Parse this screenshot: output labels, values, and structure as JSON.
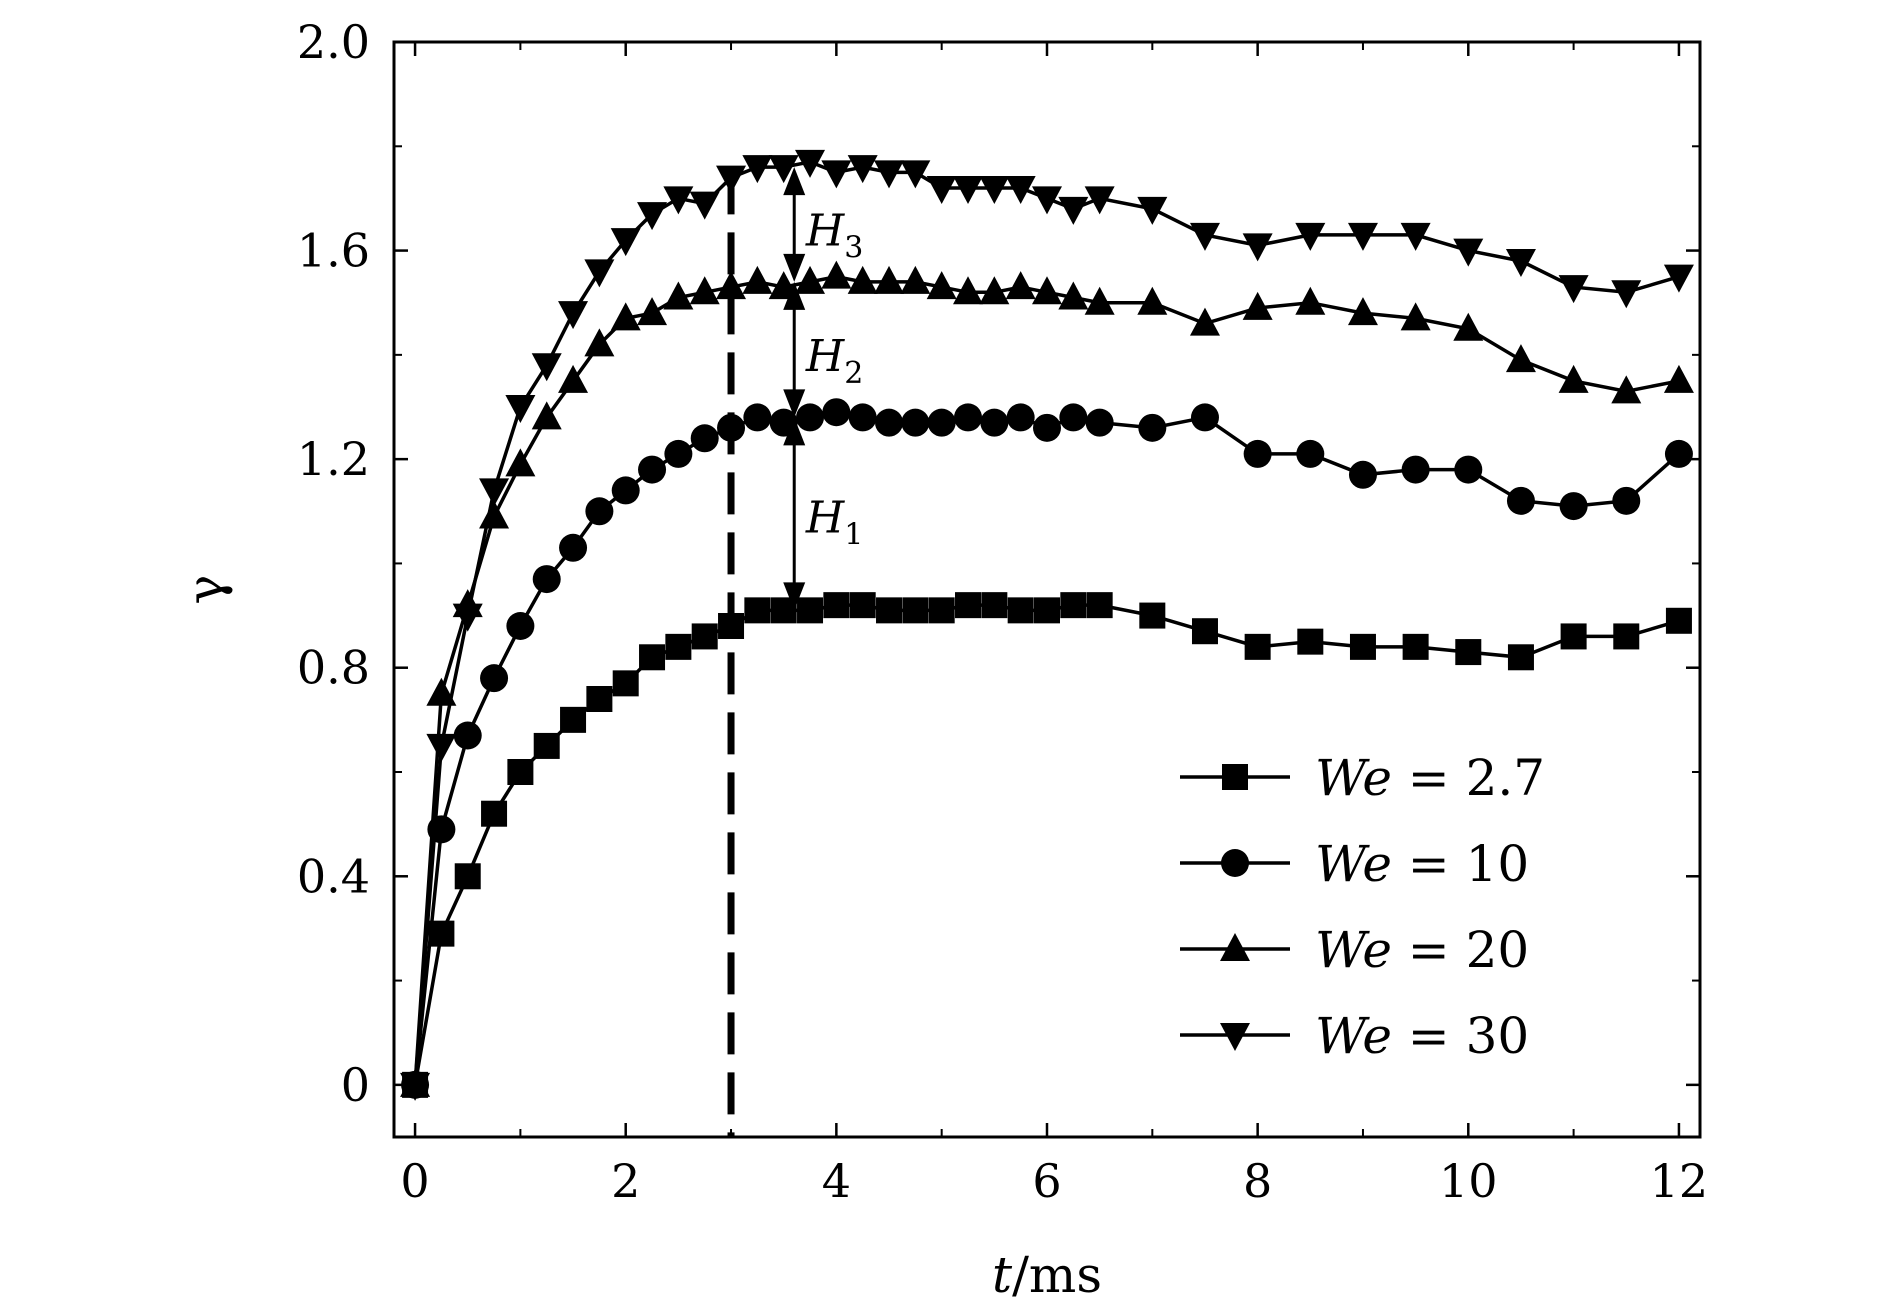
{
  "chart_data": {
    "type": "line",
    "title": "",
    "xlabel_var": "t",
    "xlabel_unit": "/ms",
    "ylabel": "γ",
    "xlim": [
      -0.2,
      12.2
    ],
    "ylim": [
      -0.1,
      2.0
    ],
    "x_ticks": [
      0,
      2,
      4,
      6,
      8,
      10,
      12
    ],
    "y_ticks": [
      0,
      0.4,
      0.8,
      1.2,
      1.6,
      2.0
    ],
    "y_tick_labels": [
      "0",
      "0.4",
      "0.8",
      "1.2",
      "1.6",
      "2.0"
    ],
    "grid": false,
    "legend_position": "bottom-right",
    "series": [
      {
        "name": "We = 2.7",
        "legend_var": "We",
        "legend_value": "= 2.7",
        "marker": "square",
        "x": [
          0,
          0.25,
          0.5,
          0.75,
          1.0,
          1.25,
          1.5,
          1.75,
          2.0,
          2.25,
          2.5,
          2.75,
          3.0,
          3.25,
          3.5,
          3.75,
          4.0,
          4.25,
          4.5,
          4.75,
          5.0,
          5.25,
          5.5,
          5.75,
          6.0,
          6.25,
          6.5,
          7.0,
          7.5,
          8.0,
          8.5,
          9.0,
          9.5,
          10.0,
          10.5,
          11.0,
          11.5,
          12.0
        ],
        "y": [
          0,
          0.29,
          0.4,
          0.52,
          0.6,
          0.65,
          0.7,
          0.74,
          0.77,
          0.82,
          0.84,
          0.86,
          0.88,
          0.91,
          0.91,
          0.91,
          0.92,
          0.92,
          0.91,
          0.91,
          0.91,
          0.92,
          0.92,
          0.91,
          0.91,
          0.92,
          0.92,
          0.9,
          0.87,
          0.84,
          0.85,
          0.84,
          0.84,
          0.83,
          0.82,
          0.86,
          0.86,
          0.89
        ]
      },
      {
        "name": "We = 10",
        "legend_var": "We",
        "legend_value": "= 10",
        "marker": "circle",
        "x": [
          0,
          0.25,
          0.5,
          0.75,
          1.0,
          1.25,
          1.5,
          1.75,
          2.0,
          2.25,
          2.5,
          2.75,
          3.0,
          3.25,
          3.5,
          3.75,
          4.0,
          4.25,
          4.5,
          4.75,
          5.0,
          5.25,
          5.5,
          5.75,
          6.0,
          6.25,
          6.5,
          7.0,
          7.5,
          8.0,
          8.5,
          9.0,
          9.5,
          10.0,
          10.5,
          11.0,
          11.5,
          12.0
        ],
        "y": [
          0,
          0.49,
          0.67,
          0.78,
          0.88,
          0.97,
          1.03,
          1.1,
          1.14,
          1.18,
          1.21,
          1.24,
          1.26,
          1.28,
          1.27,
          1.28,
          1.29,
          1.28,
          1.27,
          1.27,
          1.27,
          1.28,
          1.27,
          1.28,
          1.26,
          1.28,
          1.27,
          1.26,
          1.28,
          1.21,
          1.21,
          1.17,
          1.18,
          1.18,
          1.12,
          1.11,
          1.12,
          1.21
        ]
      },
      {
        "name": "We = 20",
        "legend_var": "We",
        "legend_value": "= 20",
        "marker": "triangle-up",
        "x": [
          0,
          0.25,
          0.5,
          0.75,
          1.0,
          1.25,
          1.5,
          1.75,
          2.0,
          2.25,
          2.5,
          2.75,
          3.0,
          3.25,
          3.5,
          3.75,
          4.0,
          4.25,
          4.5,
          4.75,
          5.0,
          5.25,
          5.5,
          5.75,
          6.0,
          6.25,
          6.5,
          7.0,
          7.5,
          8.0,
          8.5,
          9.0,
          9.5,
          10.0,
          10.5,
          11.0,
          11.5,
          12.0
        ],
        "y": [
          0,
          0.75,
          0.92,
          1.09,
          1.19,
          1.28,
          1.35,
          1.42,
          1.47,
          1.48,
          1.51,
          1.52,
          1.53,
          1.54,
          1.53,
          1.54,
          1.55,
          1.54,
          1.54,
          1.54,
          1.53,
          1.52,
          1.52,
          1.53,
          1.52,
          1.51,
          1.5,
          1.5,
          1.46,
          1.49,
          1.5,
          1.48,
          1.47,
          1.45,
          1.39,
          1.35,
          1.33,
          1.35
        ]
      },
      {
        "name": "We = 30",
        "legend_var": "We",
        "legend_value": "= 30",
        "marker": "triangle-down",
        "x": [
          0,
          0.25,
          0.5,
          0.75,
          1.0,
          1.25,
          1.5,
          1.75,
          2.0,
          2.25,
          2.5,
          2.75,
          3.0,
          3.25,
          3.5,
          3.75,
          4.0,
          4.25,
          4.5,
          4.75,
          5.0,
          5.25,
          5.5,
          5.75,
          6.0,
          6.25,
          6.5,
          7.0,
          7.5,
          8.0,
          8.5,
          9.0,
          9.5,
          10.0,
          10.5,
          11.0,
          11.5,
          12.0
        ],
        "y": [
          0,
          0.65,
          0.9,
          1.14,
          1.3,
          1.38,
          1.48,
          1.56,
          1.62,
          1.67,
          1.7,
          1.69,
          1.74,
          1.76,
          1.76,
          1.77,
          1.75,
          1.76,
          1.75,
          1.75,
          1.72,
          1.72,
          1.72,
          1.72,
          1.7,
          1.68,
          1.7,
          1.68,
          1.63,
          1.61,
          1.63,
          1.63,
          1.63,
          1.6,
          1.58,
          1.53,
          1.52,
          1.55
        ]
      }
    ],
    "reference_line": {
      "x": 3.0,
      "y_range": [
        -0.1,
        1.75
      ],
      "style": "dashed"
    },
    "annotations": [
      {
        "label": "H",
        "sub": "3",
        "x": 3.6,
        "y_from": 1.54,
        "y_to": 1.76,
        "text_x": 3.9,
        "text_y": 1.64
      },
      {
        "label": "H",
        "sub": "2",
        "x": 3.6,
        "y_from": 1.28,
        "y_to": 1.54,
        "text_x": 3.9,
        "text_y": 1.4
      },
      {
        "label": "H",
        "sub": "1",
        "x": 3.6,
        "y_from": 0.91,
        "y_to": 1.28,
        "text_x": 3.9,
        "text_y": 1.09
      }
    ]
  }
}
